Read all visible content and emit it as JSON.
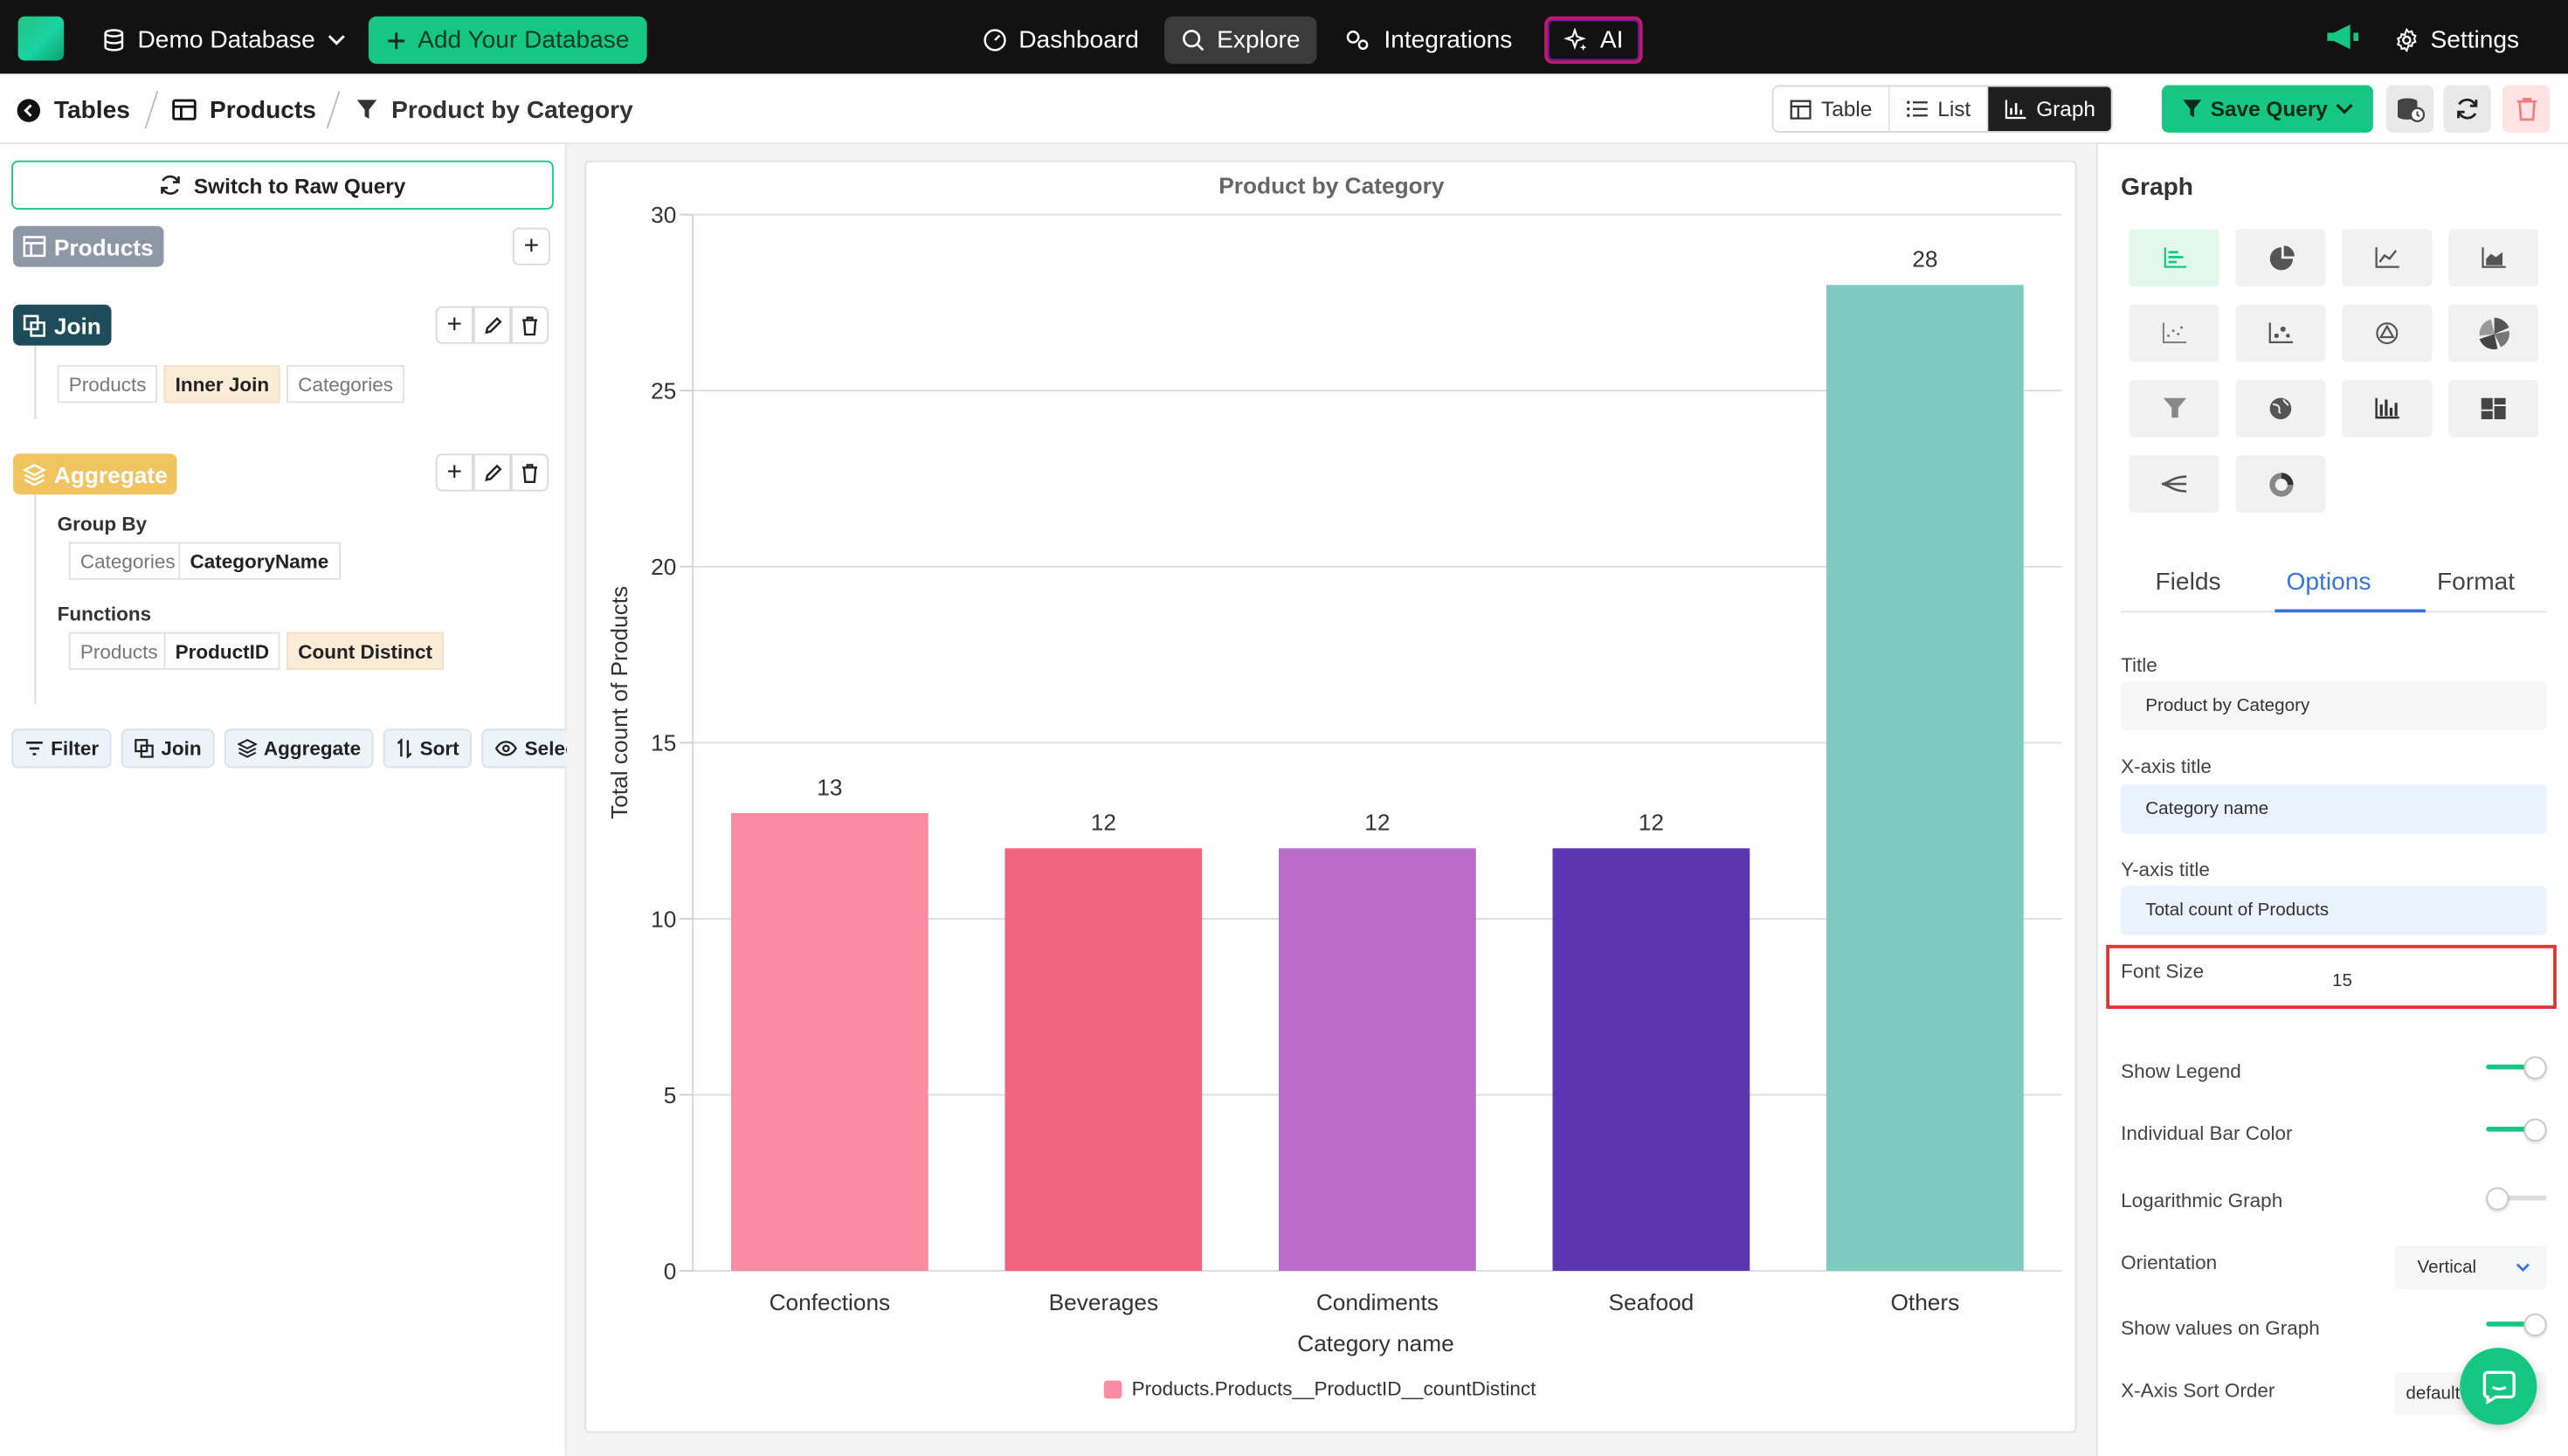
{
  "topbar": {
    "database_label": "Demo Database",
    "add_database_label": "Add Your Database",
    "nav": {
      "dashboard": "Dashboard",
      "explore": "Explore",
      "integrations": "Integrations",
      "ai": "AI",
      "settings": "Settings"
    }
  },
  "breadcrumb": {
    "tables": "Tables",
    "products": "Products",
    "query": "Product by Category"
  },
  "view_modes": {
    "table": "Table",
    "list": "List",
    "graph": "Graph",
    "active": "Graph"
  },
  "save_query_label": "Save Query",
  "query_builder": {
    "switch_raw_label": "Switch to Raw Query",
    "source_table": "Products",
    "join": {
      "title": "Join",
      "left": "Products",
      "type": "Inner Join",
      "right": "Categories"
    },
    "aggregate": {
      "title": "Aggregate",
      "group_by_label": "Group By",
      "group_table": "Categories",
      "group_field": "CategoryName",
      "functions_label": "Functions",
      "func_table": "Products",
      "func_field": "ProductID",
      "func_name": "Count Distinct"
    },
    "actions": [
      "Filter",
      "Join",
      "Aggregate",
      "Sort",
      "Select"
    ]
  },
  "chart_data": {
    "type": "bar",
    "title": "Product by Category",
    "categories": [
      "Confections",
      "Beverages",
      "Condiments",
      "Seafood",
      "Others"
    ],
    "values": [
      13,
      12,
      12,
      12,
      28
    ],
    "colors": [
      "#fa8ba0",
      "#f0647e",
      "#bb6bc9",
      "#5c35b1",
      "#7ecbbf"
    ],
    "xlabel": "Category name",
    "ylabel": "Total count of Products",
    "ylim": [
      0,
      30
    ],
    "yticks": [
      0,
      5,
      10,
      15,
      20,
      25,
      30
    ],
    "grid": true,
    "show_values": true,
    "legend": {
      "label": "Products.Products__ProductID__countDistinct",
      "color": "#fa8ba0",
      "position": "bottom"
    }
  },
  "options_panel": {
    "section_title": "Graph",
    "graph_types": [
      "bar-chart",
      "pie-chart",
      "line-chart",
      "area-chart",
      "scatter-chart",
      "bubble-chart",
      "radar-chart",
      "polar-chart",
      "funnel-chart",
      "map-chart",
      "histogram-chart",
      "treemap-chart",
      "sankey-chart",
      "doughnut-chart"
    ],
    "tabs": [
      "Fields",
      "Options",
      "Format"
    ],
    "active_tab": "Options",
    "title_label": "Title",
    "title_value": "Product by Category",
    "xaxis_title_label": "X-axis title",
    "xaxis_title_value": "Category name",
    "yaxis_title_label": "Y-axis title",
    "yaxis_title_value": "Total count of Products",
    "font_size_label": "Font Size",
    "font_size_value": "15",
    "show_legend_label": "Show Legend",
    "show_legend": true,
    "individual_bar_color_label": "Individual Bar Color",
    "individual_bar_color": true,
    "logarithmic_label": "Logarithmic Graph",
    "logarithmic": false,
    "orientation_label": "Orientation",
    "orientation_value": "Vertical",
    "show_values_label": "Show values on Graph",
    "show_values": true,
    "xaxis_sort_label": "X-Axis Sort Order",
    "xaxis_sort_value": "default",
    "accent_color": "#16c784"
  }
}
